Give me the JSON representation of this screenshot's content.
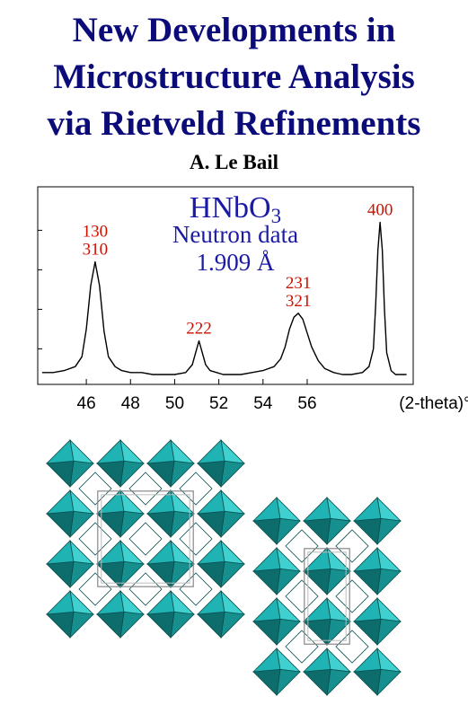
{
  "header": {
    "title_lines": [
      "New Developments in",
      "Microstructure Analysis",
      "via Rietveld Refinements"
    ],
    "author": "A. Le Bail"
  },
  "colors": {
    "title": "#0b0b7a",
    "peak_label": "#cc1100",
    "inset_text": "#1a1aa6",
    "polyhedra": "#1fb3b3"
  },
  "chart_data": {
    "type": "line",
    "title": "",
    "compound": "HNbO3",
    "subtitle_lines": [
      "Neutron data",
      "1.909 Å"
    ],
    "xlabel": "(2-theta)°",
    "ylabel": "",
    "xlim": [
      43.8,
      60.8
    ],
    "ylim": [
      0,
      100
    ],
    "xticks": [
      46,
      48,
      50,
      52,
      54,
      56
    ],
    "grid": false,
    "peaks": [
      {
        "label_lines": [
          "130",
          "310"
        ],
        "center": 46.4,
        "height": 62
      },
      {
        "label_lines": [
          "222"
        ],
        "center": 51.1,
        "height": 22
      },
      {
        "label_lines": [
          "231",
          "321"
        ],
        "center": 55.6,
        "height": 36
      },
      {
        "label_lines": [
          "400"
        ],
        "center": 59.3,
        "height": 82
      }
    ],
    "x": [
      44.0,
      44.5,
      45.0,
      45.5,
      45.8,
      46.0,
      46.2,
      46.4,
      46.6,
      46.8,
      47.0,
      47.3,
      47.6,
      48.0,
      48.5,
      49.0,
      49.5,
      50.0,
      50.5,
      50.8,
      51.0,
      51.1,
      51.2,
      51.4,
      51.6,
      51.9,
      52.2,
      52.6,
      53.0,
      53.5,
      54.0,
      54.5,
      54.8,
      55.0,
      55.2,
      55.4,
      55.6,
      55.8,
      56.0,
      56.2,
      56.5,
      56.8,
      57.2,
      57.6,
      58.0,
      58.5,
      58.8,
      59.0,
      59.1,
      59.2,
      59.3,
      59.4,
      59.5,
      59.6,
      59.8,
      60.0,
      60.5
    ],
    "y": [
      6,
      6,
      7,
      9,
      14,
      28,
      50,
      62,
      50,
      27,
      14,
      9,
      7,
      6,
      6,
      5,
      5,
      5,
      6,
      10,
      18,
      22,
      18,
      10,
      7,
      6,
      5,
      5,
      5,
      6,
      7,
      9,
      13,
      19,
      28,
      34,
      36,
      33,
      26,
      19,
      12,
      8,
      6,
      5,
      5,
      6,
      9,
      18,
      40,
      68,
      82,
      68,
      38,
      16,
      7,
      5,
      5
    ]
  }
}
